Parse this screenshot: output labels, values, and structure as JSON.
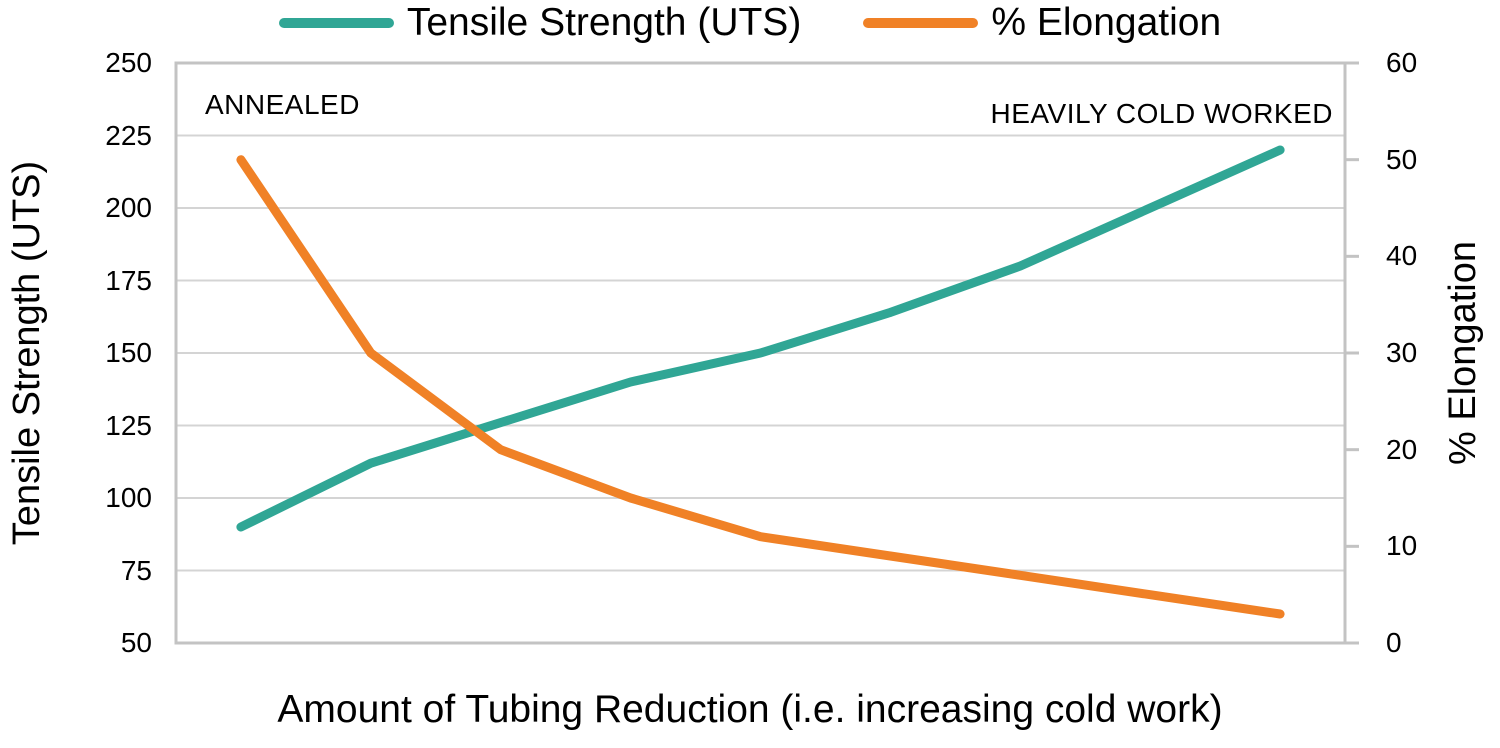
{
  "chart_data": {
    "type": "line",
    "legend_position": "top",
    "grid": {
      "horizontal": true,
      "vertical": false,
      "color": "#D4D4D4"
    },
    "plot_border_color": "#C3C3C3",
    "n_categories": 9,
    "x_axis": {
      "title": "Amount of Tubing Reduction (i.e. increasing cold work)",
      "tick_labels_visible": false
    },
    "y_axis_left": {
      "title": "Tensile Strength (UTS)",
      "min": 50,
      "max": 250,
      "step": 25,
      "tick_labels": [
        "250",
        "225",
        "200",
        "175",
        "150",
        "125",
        "100",
        "75",
        "50"
      ]
    },
    "y_axis_right": {
      "title": "% Elongation",
      "min": 0,
      "max": 60,
      "step": 10,
      "tick_labels": [
        "60",
        "50",
        "40",
        "30",
        "20",
        "10",
        "0"
      ]
    },
    "series": [
      {
        "name": "Tensile Strength (UTS)",
        "axis": "left",
        "color": "#30A695",
        "values": [
          90,
          112,
          126,
          140,
          150,
          164,
          180,
          200,
          220
        ]
      },
      {
        "name": "% Elongation",
        "axis": "right",
        "color": "#F08126",
        "values": [
          50,
          30,
          20,
          15,
          11,
          9,
          7,
          5,
          3
        ]
      }
    ],
    "annotations": [
      {
        "text": "ANNEALED",
        "position": "top-left"
      },
      {
        "text": "HEAVILY COLD WORKED",
        "position": "top-right"
      }
    ]
  }
}
